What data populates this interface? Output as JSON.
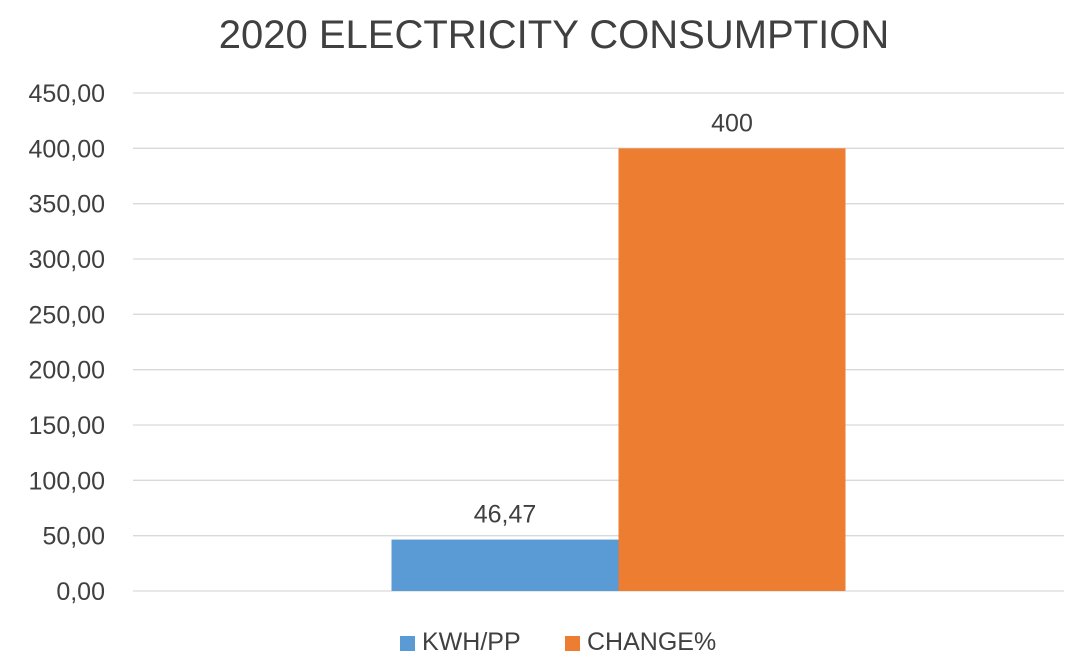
{
  "chart_data": {
    "type": "bar",
    "title": "2020 ELECTRICITY CONSUMPTION",
    "xlabel": "",
    "ylabel": "",
    "categories": [
      ""
    ],
    "series": [
      {
        "name": "KWH/PP",
        "values": [
          46.47
        ],
        "data_label": "46,47",
        "color": "#5b9bd5"
      },
      {
        "name": "CHANGE%",
        "values": [
          400
        ],
        "data_label": "400",
        "color": "#ed7d31"
      }
    ],
    "ylim": [
      0,
      450
    ],
    "ytick_labels": [
      "0,00",
      "50,00",
      "100,00",
      "150,00",
      "200,00",
      "250,00",
      "300,00",
      "350,00",
      "400,00",
      "450,00"
    ],
    "grid": true,
    "legend_position": "bottom"
  }
}
